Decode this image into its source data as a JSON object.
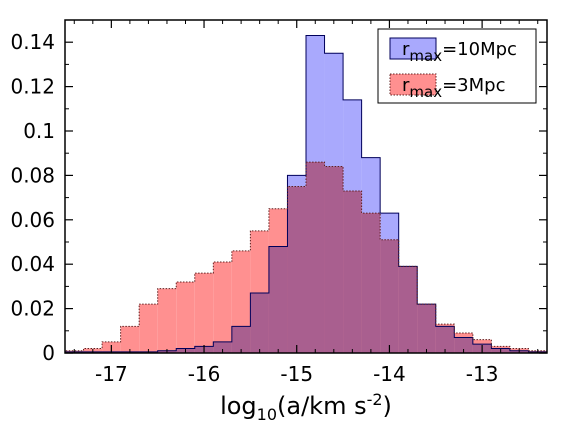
{
  "chart_data": {
    "type": "bar",
    "subtype": "histogram",
    "xlabel": {
      "base": "log",
      "sub": "10",
      "mid": "(a/km s",
      "sup": "-2",
      "end": ")"
    },
    "ylabel": "",
    "xlim": [
      -17.5,
      -12.3
    ],
    "ylim": [
      0,
      0.15
    ],
    "x_ticks": [
      -17,
      -16,
      -15,
      -14,
      -13
    ],
    "x_tick_labels": [
      "-17",
      "-16",
      "-15",
      "-14",
      "-13"
    ],
    "y_ticks": [
      0,
      0.02,
      0.04,
      0.06,
      0.08,
      0.1,
      0.12,
      0.14
    ],
    "y_tick_labels": [
      "0",
      "0.02",
      "0.04",
      "0.06",
      "0.08",
      "0.1",
      "0.12",
      "0.14"
    ],
    "bin_edges": [
      -17.5,
      -17.3,
      -17.1,
      -16.9,
      -16.7,
      -16.5,
      -16.3,
      -16.1,
      -15.9,
      -15.7,
      -15.5,
      -15.3,
      -15.1,
      -14.9,
      -14.7,
      -14.5,
      -14.3,
      -14.1,
      -13.9,
      -13.7,
      -13.5,
      -13.3,
      -13.1,
      -12.9,
      -12.7,
      -12.5,
      -12.3
    ],
    "legend_position": "top-right",
    "series": [
      {
        "label": {
          "base": "r",
          "sub": "max",
          "rest": "=10Mpc"
        },
        "color": "#a9a9fd",
        "edge_color": "#00005a",
        "edge_style": "solid",
        "values": [
          0.0005,
          0.0005,
          0.0005,
          0.0005,
          0.0005,
          0.001,
          0.002,
          0.003,
          0.005,
          0.012,
          0.027,
          0.048,
          0.08,
          0.143,
          0.135,
          0.114,
          0.088,
          0.063,
          0.039,
          0.022,
          0.012,
          0.007,
          0.004,
          0.002,
          0.001,
          0.0005
        ]
      },
      {
        "label": {
          "base": "r",
          "sub": "max",
          "rest": "=3Mpc"
        },
        "color": "#ff9090",
        "edge_color": "#602020",
        "edge_style": "dotted",
        "values": [
          0.001,
          0.002,
          0.005,
          0.012,
          0.022,
          0.029,
          0.032,
          0.036,
          0.041,
          0.046,
          0.055,
          0.065,
          0.075,
          0.086,
          0.084,
          0.073,
          0.063,
          0.051,
          0.039,
          0.022,
          0.013,
          0.009,
          0.006,
          0.003,
          0.002,
          0.001
        ]
      }
    ]
  }
}
